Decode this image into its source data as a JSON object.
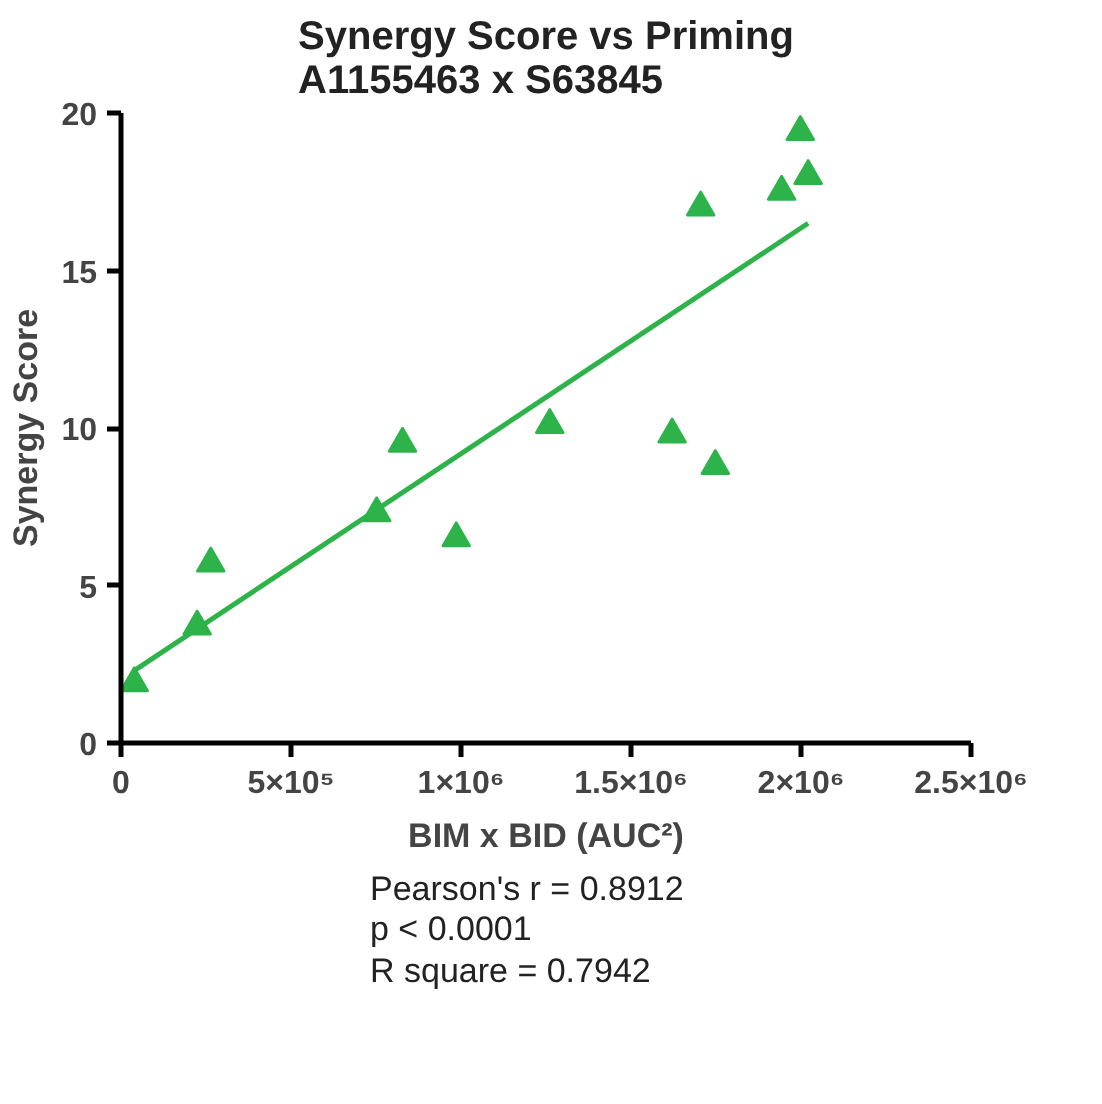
{
  "chart_data": {
    "type": "scatter",
    "title": "Synergy Score vs Priming\nA1155463 x S63845",
    "xlabel": "BIM x BID (AUC²)",
    "ylabel": "Synergy Score",
    "xlim": [
      0,
      2500000
    ],
    "ylim": [
      0,
      20
    ],
    "xticks": [
      {
        "value": 0,
        "label": "0"
      },
      {
        "value": 500000,
        "label": "5×10⁵"
      },
      {
        "value": 1000000,
        "label": "1×10⁶"
      },
      {
        "value": 1500000,
        "label": "1.5×10⁶"
      },
      {
        "value": 2000000,
        "label": "2×10⁶"
      },
      {
        "value": 2500000,
        "label": "2.5×10⁶"
      }
    ],
    "yticks": [
      0,
      5,
      10,
      15,
      20
    ],
    "grid": false,
    "series": [
      {
        "marker": "triangle",
        "color": "#2db34a",
        "x": [
          39000,
          224000,
          264000,
          752000,
          828000,
          986000,
          1261000,
          1621000,
          1748000,
          1705000,
          1943000,
          1998000,
          2021000
        ],
        "values": [
          1.9,
          3.7,
          5.7,
          7.3,
          9.5,
          6.5,
          10.1,
          9.8,
          8.8,
          17.0,
          17.5,
          19.4,
          18.0
        ]
      },
      {
        "type": "line",
        "marker": "none",
        "color": "#2db34a",
        "x": [
          39000,
          2021000
        ],
        "values": [
          2.3,
          16.5
        ]
      }
    ],
    "annotations": [
      "Pearson's r = 0.8912",
      "p < 0.0001",
      "R square = 0.7942"
    ]
  }
}
